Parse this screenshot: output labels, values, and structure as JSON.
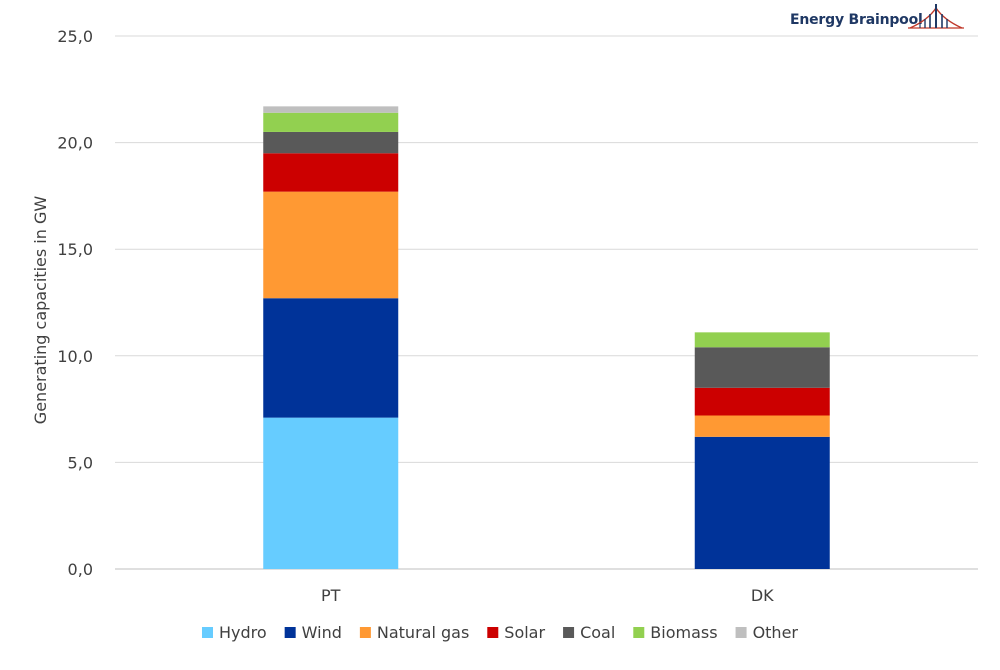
{
  "brand": {
    "name": "Energy Brainpool",
    "logo_icon": "bridge-logo-icon"
  },
  "chart_data": {
    "type": "bar",
    "stacked": true,
    "categories": [
      "PT",
      "DK"
    ],
    "ylabel": "Generating capacities in GW",
    "xlabel": "",
    "ylim": [
      0,
      25
    ],
    "yticks": [
      "0,0",
      "5,0",
      "10,0",
      "15,0",
      "20,0",
      "25,0"
    ],
    "grid": true,
    "legend_position": "bottom",
    "series": [
      {
        "name": "Hydro",
        "color": "#66ccff",
        "values": [
          7.1,
          0.0
        ]
      },
      {
        "name": "Wind",
        "color": "#003399",
        "values": [
          5.6,
          6.2
        ]
      },
      {
        "name": "Natural gas",
        "color": "#ff9933",
        "values": [
          5.0,
          1.0
        ]
      },
      {
        "name": "Solar",
        "color": "#cc0000",
        "values": [
          1.8,
          1.3
        ]
      },
      {
        "name": "Coal",
        "color": "#595959",
        "values": [
          1.0,
          1.9
        ]
      },
      {
        "name": "Biomass",
        "color": "#92d050",
        "values": [
          0.9,
          0.7
        ]
      },
      {
        "name": "Other",
        "color": "#bfbfbf",
        "values": [
          0.3,
          0.0
        ]
      }
    ]
  }
}
